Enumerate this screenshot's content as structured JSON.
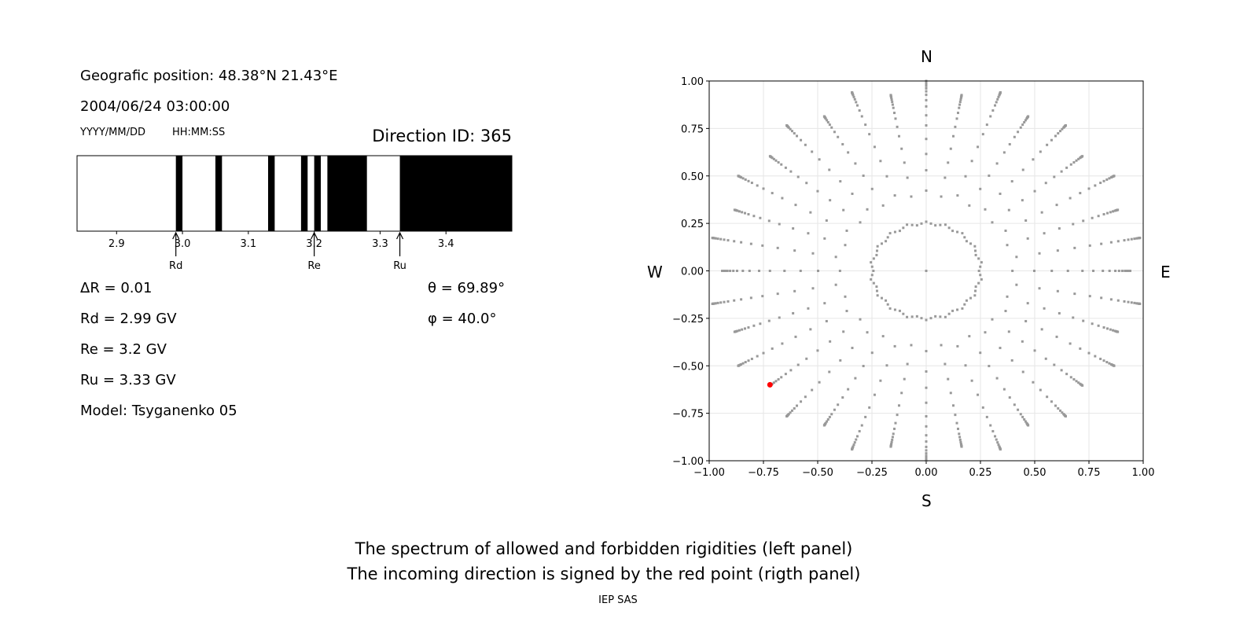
{
  "left_panel": {
    "position_text": "Geografic position: 48.38°N 21.43°E",
    "datetime_text": "2004/06/24 03:00:00",
    "date_format_label": "YYYY/MM/DD",
    "time_format_label": "HH:MM:SS",
    "direction_id_text": "Direction ID: 365",
    "delta_r_text": "ΔR = 0.01",
    "rd_text": "Rd = 2.99 GV",
    "re_text": "Re = 3.2 GV",
    "ru_text": "Ru = 3.33 GV",
    "model_text": "Model: Tsyganenko 05",
    "theta_text": "θ = 69.89°",
    "phi_text": "φ = 40.0°"
  },
  "footer": {
    "line1": "The spectrum of allowed and forbidden rigidities (left panel)",
    "line2": "The incoming direction is signed by the red point (rigth panel)",
    "credit": "IEP SAS"
  },
  "chart_data": [
    {
      "type": "bar",
      "name": "rigidity-spectrum",
      "xlim": [
        2.84,
        3.5
      ],
      "xticks": [
        "2.9",
        "3.0",
        "3.1",
        "3.2",
        "3.3",
        "3.4"
      ],
      "xtick_values": [
        2.9,
        3.0,
        3.1,
        3.2,
        3.3,
        3.4
      ],
      "forbidden_bands": [
        [
          2.99,
          3.0
        ],
        [
          3.05,
          3.06
        ],
        [
          3.13,
          3.14
        ],
        [
          3.18,
          3.19
        ],
        [
          3.2,
          3.21
        ],
        [
          3.22,
          3.28
        ],
        [
          3.33,
          3.5
        ]
      ],
      "markers": [
        {
          "label": "Rd",
          "value": 2.99
        },
        {
          "label": "Re",
          "value": 3.2
        },
        {
          "label": "Ru",
          "value": 3.33
        }
      ],
      "colors": {
        "forbidden": "#000000",
        "allowed": "#ffffff"
      }
    },
    {
      "type": "scatter",
      "name": "direction-map",
      "xlim": [
        -1,
        1
      ],
      "ylim": [
        -1,
        1
      ],
      "ticks": [
        "−1.00",
        "−0.75",
        "−0.50",
        "−0.25",
        "0.00",
        "0.25",
        "0.50",
        "0.75",
        "1.00"
      ],
      "tick_values": [
        -1,
        -0.75,
        -0.5,
        -0.25,
        0,
        0.25,
        0.5,
        0.75,
        1
      ],
      "grid": true,
      "compass": {
        "north": "N",
        "south": "S",
        "west": "W",
        "east": "E"
      },
      "azimuth_step_deg": 10,
      "zenith_angles_deg": [
        0,
        15,
        25,
        32,
        38,
        44,
        50,
        55,
        60,
        64,
        68,
        71,
        74,
        77,
        80,
        82,
        84,
        86,
        88,
        90
      ],
      "highlight": {
        "x": -0.72,
        "y": -0.6
      },
      "colors": {
        "points": "#999999",
        "highlight": "#ff0000",
        "grid": "#e6e6e6"
      }
    }
  ]
}
